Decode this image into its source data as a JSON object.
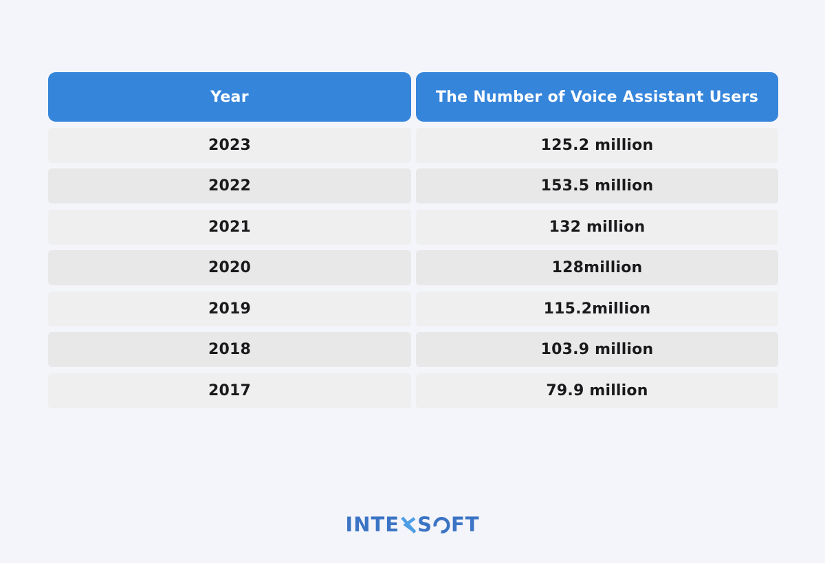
{
  "chart_data": {
    "type": "table",
    "columns": [
      "Year",
      "The Number of Voice Assistant Users"
    ],
    "rows": [
      [
        "2023",
        "125.2 million"
      ],
      [
        "2022",
        "153.5 million"
      ],
      [
        "2021",
        "132 million"
      ],
      [
        "2020",
        "128million"
      ],
      [
        "2019",
        "115.2million"
      ],
      [
        "2018",
        "103.9 million"
      ],
      [
        "2017",
        "79.9 million"
      ]
    ],
    "values_millions": [
      {
        "year": 2023,
        "users_millions": 125.2
      },
      {
        "year": 2022,
        "users_millions": 153.5
      },
      {
        "year": 2021,
        "users_millions": 132
      },
      {
        "year": 2020,
        "users_millions": 128
      },
      {
        "year": 2019,
        "users_millions": 115.2
      },
      {
        "year": 2018,
        "users_millions": 103.9
      },
      {
        "year": 2017,
        "users_millions": 79.9
      }
    ],
    "layout": {
      "header_fill": "#3585DB",
      "alternating_row_fills": [
        "#EFEFF0",
        "#E8E8E9"
      ],
      "grid": "off"
    }
  },
  "logo": {
    "text": "INTEXSOFT",
    "part1": "INTE",
    "part2": "S",
    "part3": "FT"
  },
  "colors": {
    "page-bg": "#F4F5FA",
    "header-bg": "#3585DB",
    "header-text": "#FFFFFF",
    "cell-text": "#1A1A1C",
    "row-light": "#EFEFF0",
    "row-dark": "#E8E8E9",
    "logo-primary": "#3B74C4",
    "logo-accent": "#4D9EE4"
  }
}
